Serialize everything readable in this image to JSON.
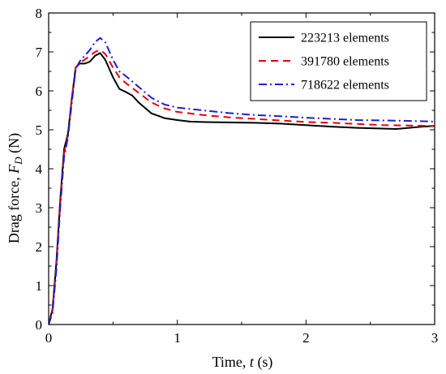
{
  "chart_data": {
    "type": "line",
    "xlabel": {
      "prefix": "Time, ",
      "symbol": "t",
      "suffix": " (s)"
    },
    "ylabel": {
      "prefix": "Drag force, ",
      "symbol": "F",
      "subscript": "D",
      "suffix": " (N)"
    },
    "xlim": [
      0,
      3
    ],
    "ylim": [
      0,
      8
    ],
    "xticks": [
      0,
      1,
      2,
      3
    ],
    "yticks": [
      0,
      1,
      2,
      3,
      4,
      5,
      6,
      7,
      8
    ],
    "grid": false,
    "legend_position": "top-right",
    "series": [
      {
        "name": "223213 elements",
        "color": "#000000",
        "dash": "solid",
        "points": [
          [
            0,
            0
          ],
          [
            0.03,
            0.4
          ],
          [
            0.06,
            1.6
          ],
          [
            0.09,
            3.2
          ],
          [
            0.12,
            4.5
          ],
          [
            0.15,
            4.9
          ],
          [
            0.18,
            5.8
          ],
          [
            0.21,
            6.6
          ],
          [
            0.24,
            6.7
          ],
          [
            0.28,
            6.7
          ],
          [
            0.32,
            6.75
          ],
          [
            0.36,
            6.9
          ],
          [
            0.4,
            6.97
          ],
          [
            0.44,
            6.8
          ],
          [
            0.5,
            6.35
          ],
          [
            0.55,
            6.05
          ],
          [
            0.6,
            5.97
          ],
          [
            0.65,
            5.88
          ],
          [
            0.7,
            5.7
          ],
          [
            0.8,
            5.42
          ],
          [
            0.9,
            5.3
          ],
          [
            1.0,
            5.25
          ],
          [
            1.1,
            5.21
          ],
          [
            1.2,
            5.2
          ],
          [
            1.4,
            5.19
          ],
          [
            1.6,
            5.18
          ],
          [
            1.8,
            5.16
          ],
          [
            2.0,
            5.12
          ],
          [
            2.2,
            5.08
          ],
          [
            2.4,
            5.05
          ],
          [
            2.6,
            5.03
          ],
          [
            2.7,
            5.02
          ],
          [
            2.8,
            5.05
          ],
          [
            2.9,
            5.08
          ],
          [
            3.0,
            5.1
          ]
        ]
      },
      {
        "name": "391780 elements",
        "color": "#e8000b",
        "dash": "dashed",
        "points": [
          [
            0,
            0
          ],
          [
            0.03,
            0.35
          ],
          [
            0.06,
            1.5
          ],
          [
            0.09,
            3.1
          ],
          [
            0.12,
            4.4
          ],
          [
            0.15,
            4.85
          ],
          [
            0.18,
            5.8
          ],
          [
            0.21,
            6.6
          ],
          [
            0.24,
            6.72
          ],
          [
            0.28,
            6.8
          ],
          [
            0.32,
            6.9
          ],
          [
            0.36,
            7.0
          ],
          [
            0.4,
            7.05
          ],
          [
            0.44,
            6.95
          ],
          [
            0.5,
            6.6
          ],
          [
            0.55,
            6.35
          ],
          [
            0.6,
            6.2
          ],
          [
            0.7,
            5.95
          ],
          [
            0.8,
            5.7
          ],
          [
            0.9,
            5.55
          ],
          [
            1.0,
            5.46
          ],
          [
            1.2,
            5.38
          ],
          [
            1.4,
            5.32
          ],
          [
            1.6,
            5.28
          ],
          [
            1.8,
            5.24
          ],
          [
            2.0,
            5.2
          ],
          [
            2.2,
            5.18
          ],
          [
            2.4,
            5.15
          ],
          [
            2.6,
            5.12
          ],
          [
            2.8,
            5.11
          ],
          [
            3.0,
            5.1
          ]
        ]
      },
      {
        "name": "718622 elements",
        "color": "#1f1fd0",
        "dash": "dashdot",
        "points": [
          [
            0,
            0
          ],
          [
            0.03,
            0.3
          ],
          [
            0.06,
            1.4
          ],
          [
            0.09,
            3.0
          ],
          [
            0.12,
            4.3
          ],
          [
            0.15,
            4.8
          ],
          [
            0.18,
            5.7
          ],
          [
            0.21,
            6.55
          ],
          [
            0.24,
            6.75
          ],
          [
            0.28,
            6.9
          ],
          [
            0.32,
            7.05
          ],
          [
            0.36,
            7.25
          ],
          [
            0.4,
            7.36
          ],
          [
            0.44,
            7.25
          ],
          [
            0.5,
            6.8
          ],
          [
            0.55,
            6.5
          ],
          [
            0.6,
            6.38
          ],
          [
            0.7,
            6.1
          ],
          [
            0.8,
            5.82
          ],
          [
            0.9,
            5.65
          ],
          [
            1.0,
            5.57
          ],
          [
            1.2,
            5.5
          ],
          [
            1.4,
            5.43
          ],
          [
            1.6,
            5.38
          ],
          [
            1.8,
            5.35
          ],
          [
            2.0,
            5.31
          ],
          [
            2.2,
            5.28
          ],
          [
            2.4,
            5.25
          ],
          [
            2.6,
            5.24
          ],
          [
            2.8,
            5.23
          ],
          [
            3.0,
            5.21
          ]
        ]
      }
    ]
  }
}
